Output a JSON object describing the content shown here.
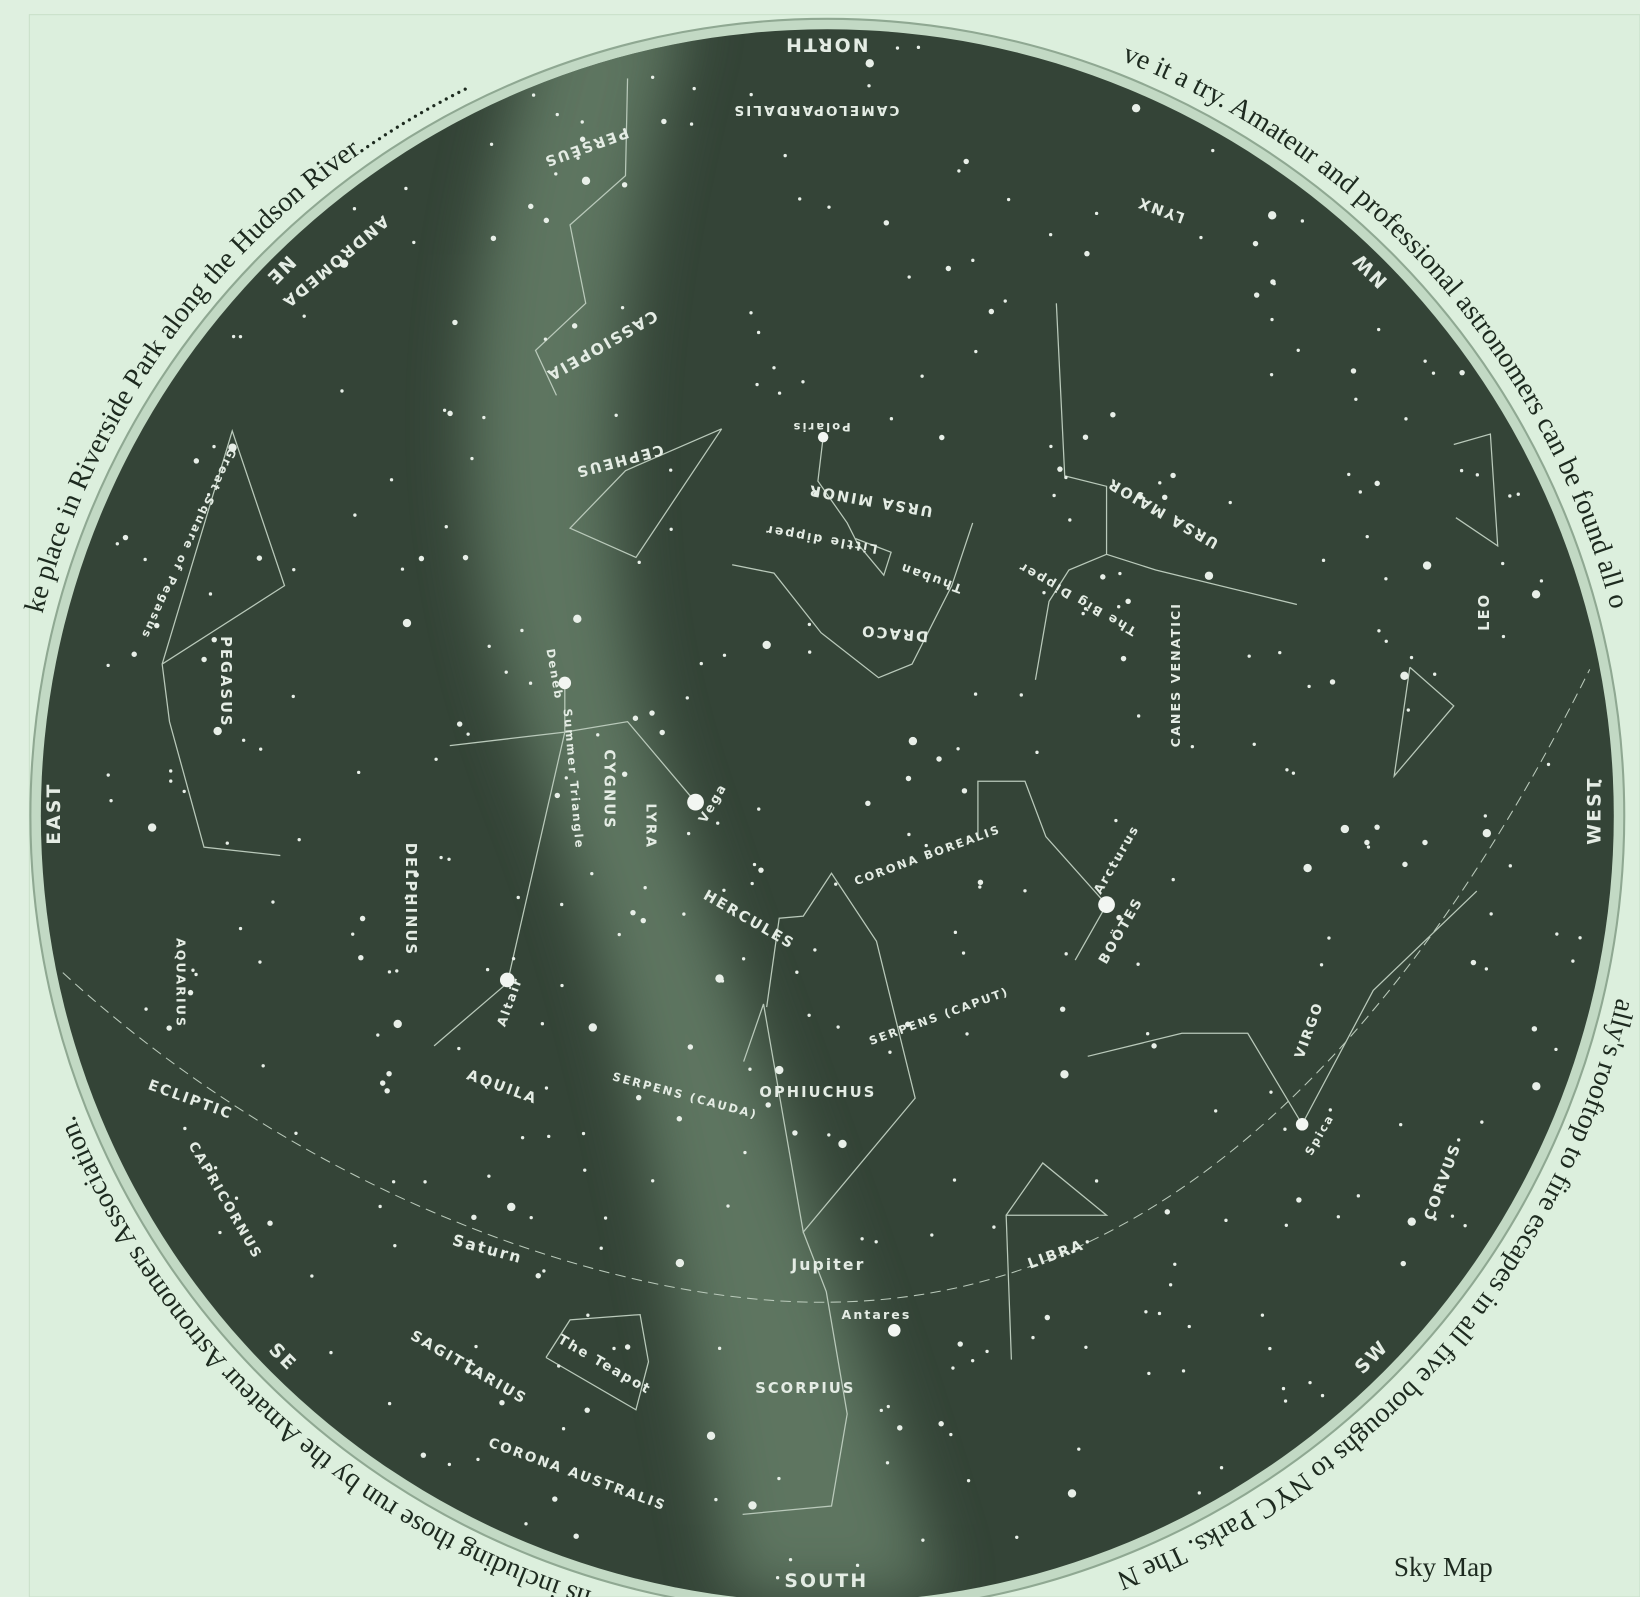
{
  "title": "Sky Map",
  "compass": [
    "NORTH",
    "NE",
    "EAST",
    "SE",
    "SOUTH",
    "SW",
    "WEST",
    "NW"
  ],
  "labels": [
    "PERSEUS",
    "CAMELOPARDALIS",
    "LYNX",
    "ANDROMEDA",
    "CASSIOPEIA",
    "CEPHEUS",
    "URSA MINOR",
    "URSA MAJOR",
    "Little dipper",
    "The Big Dipper",
    "DRACO",
    "Thuban",
    "CANES VENATICI",
    "LEO",
    "PEGASUS",
    "Great Square of Pegasus",
    "CYGNUS",
    "Vega",
    "Polaris",
    "Deneb",
    "Summer Triangle",
    "LYRA",
    "HERCULES",
    "CORONA BOREALIS",
    "Arcturus",
    "BOÖTES",
    "DELPHINUS",
    "AQUARIUS",
    "VIRGO",
    "Spica",
    "AQUILA",
    "Altair",
    "OPHIUCHUS",
    "SERPENS (CAUDA)",
    "SERPENS (CAPUT)",
    "ECLIPTIC",
    "CAPRICORNUS",
    "Saturn",
    "Jupiter",
    "Antares",
    "LIBRA",
    "CORVUS",
    "SAGITTARIUS",
    "The Teapot",
    "SCORPIUS",
    "CORONA AUSTRALIS"
  ],
  "caption_arcs": [
    "ke place in Riverside  Park along the Hudson River..................",
    "ve it a try. Amateur and professional astronomers can be found all o",
    "ally's rooftop to fire escapes in all five boroughs to NYC  Parks. The N",
    "ns including those run by the Amateur  Astronomers Association."
  ]
}
